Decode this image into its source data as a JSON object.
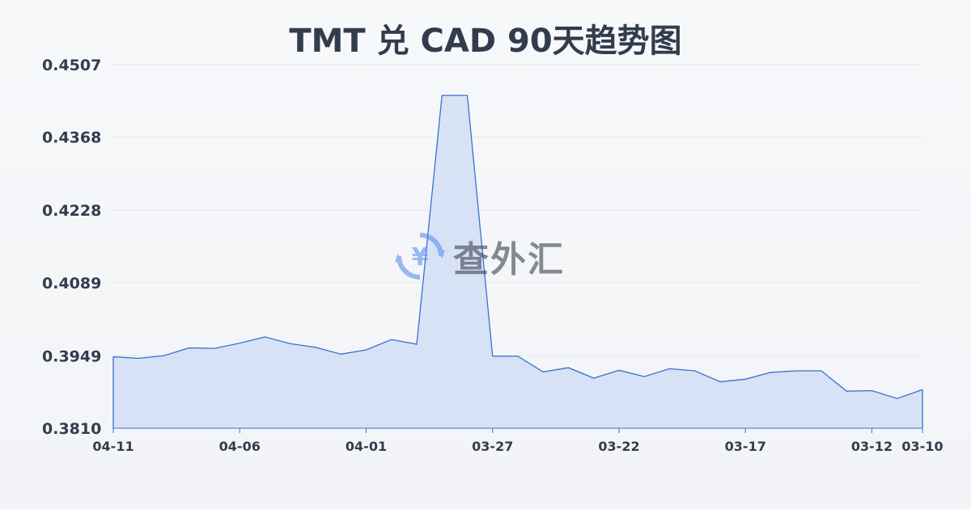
{
  "chart_data": {
    "type": "area",
    "title": "TMT 兑 CAD 90天趋势图",
    "xlabel": "",
    "ylabel": "",
    "ylim": [
      0.381,
      0.4507
    ],
    "y_ticks": [
      "0.4507",
      "0.4368",
      "0.4228",
      "0.4089",
      "0.3949",
      "0.3810"
    ],
    "x_tick_labels": [
      "04-11",
      "04-06",
      "04-01",
      "03-27",
      "03-22",
      "03-17",
      "03-12",
      "03-10"
    ],
    "grid": "horizontal",
    "x": [
      "04-11",
      "04-10",
      "04-09",
      "04-08",
      "04-07",
      "04-06",
      "04-05",
      "04-04",
      "04-03",
      "04-02",
      "04-01",
      "03-31",
      "03-30",
      "03-29",
      "03-28",
      "03-27",
      "03-26",
      "03-25",
      "03-24",
      "03-23",
      "03-22",
      "03-21",
      "03-20",
      "03-19",
      "03-18",
      "03-17",
      "03-16",
      "03-15",
      "03-14",
      "03-13",
      "03-12",
      "03-11",
      "03-10"
    ],
    "values": [
      0.3947,
      0.3944,
      0.3949,
      0.3964,
      0.3963,
      0.3973,
      0.3985,
      0.3972,
      0.3965,
      0.3952,
      0.396,
      0.398,
      0.3971,
      0.4448,
      0.4448,
      0.3948,
      0.3948,
      0.3918,
      0.3926,
      0.3906,
      0.3921,
      0.3909,
      0.3924,
      0.392,
      0.3899,
      0.3904,
      0.3917,
      0.392,
      0.392,
      0.3881,
      0.3882,
      0.3867,
      0.3884
    ],
    "colors": {
      "line": "#3a6fd0",
      "fill": "#d5e0f5",
      "grid": "#e3e6eb"
    }
  },
  "watermark": {
    "text": "查外汇",
    "icon": "yen-exchange-icon"
  }
}
